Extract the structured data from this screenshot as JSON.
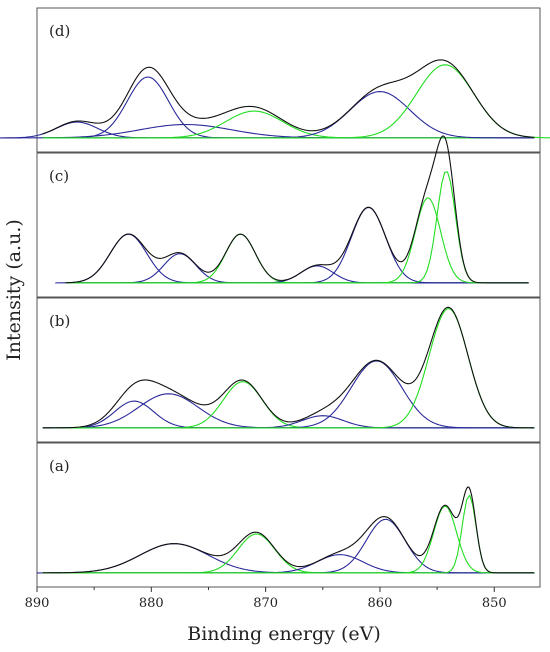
{
  "chart_data": {
    "type": "line",
    "xlabel": "Binding energy (eV)",
    "ylabel": "Intensity (a.u.)",
    "xlim": [
      890,
      846
    ],
    "x_reversed": true,
    "xticks": [
      890,
      880,
      870,
      860,
      850
    ],
    "colors": {
      "envelope": "#111111",
      "blue": "#2a2a9a",
      "green": "#22dd22",
      "baseline": "#2a2a9a"
    },
    "panels": [
      {
        "label": "(d)",
        "x_range": [
          889.5,
          846.5
        ],
        "baseline": 0.0,
        "ylim": [
          -0.05,
          1.0
        ],
        "peaks": [
          {
            "center": 886.5,
            "height": 0.13,
            "width": 1.8,
            "color": "blue"
          },
          {
            "center": 880.3,
            "height": 0.5,
            "width": 1.8,
            "color": "blue"
          },
          {
            "center": 877.0,
            "height": 0.11,
            "width": 4.0,
            "color": "blue"
          },
          {
            "center": 871.0,
            "height": 0.22,
            "width": 2.5,
            "color": "green"
          },
          {
            "center": 860.0,
            "height": 0.38,
            "width": 2.6,
            "color": "blue"
          },
          {
            "center": 854.3,
            "height": 0.6,
            "width": 2.5,
            "color": "green"
          }
        ]
      },
      {
        "label": "(c)",
        "x_range": [
          887.5,
          847.0
        ],
        "baseline": 0.0,
        "ylim": [
          -0.05,
          1.0
        ],
        "peaks": [
          {
            "center": 882.0,
            "height": 0.4,
            "width": 1.6,
            "color": "blue"
          },
          {
            "center": 877.5,
            "height": 0.24,
            "width": 1.4,
            "color": "blue"
          },
          {
            "center": 872.2,
            "height": 0.4,
            "width": 1.3,
            "color": "green"
          },
          {
            "center": 865.5,
            "height": 0.14,
            "width": 1.4,
            "color": "blue"
          },
          {
            "center": 861.0,
            "height": 0.62,
            "width": 1.5,
            "color": "blue"
          },
          {
            "center": 855.8,
            "height": 0.7,
            "width": 1.1,
            "color": "green"
          },
          {
            "center": 854.2,
            "height": 0.92,
            "width": 0.8,
            "color": "green"
          }
        ]
      },
      {
        "label": "(b)",
        "x_range": [
          889.5,
          846.5
        ],
        "baseline": 0.0,
        "ylim": [
          -0.05,
          1.0
        ],
        "peaks": [
          {
            "center": 881.5,
            "height": 0.22,
            "width": 1.7,
            "color": "blue"
          },
          {
            "center": 878.5,
            "height": 0.28,
            "width": 2.6,
            "color": "blue"
          },
          {
            "center": 872.0,
            "height": 0.38,
            "width": 1.7,
            "color": "green"
          },
          {
            "center": 865.0,
            "height": 0.1,
            "width": 1.8,
            "color": "blue"
          },
          {
            "center": 860.3,
            "height": 0.55,
            "width": 2.2,
            "color": "blue"
          },
          {
            "center": 854.0,
            "height": 0.98,
            "width": 1.7,
            "color": "green"
          }
        ]
      },
      {
        "label": "(a)",
        "x_range": [
          889.5,
          846.5
        ],
        "baseline": 0.0,
        "ylim": [
          -0.05,
          1.0
        ],
        "peaks": [
          {
            "center": 878.0,
            "height": 0.24,
            "width": 3.0,
            "color": "blue"
          },
          {
            "center": 870.8,
            "height": 0.32,
            "width": 1.6,
            "color": "green"
          },
          {
            "center": 863.5,
            "height": 0.15,
            "width": 2.0,
            "color": "blue"
          },
          {
            "center": 859.5,
            "height": 0.44,
            "width": 1.7,
            "color": "blue"
          },
          {
            "center": 854.3,
            "height": 0.55,
            "width": 1.0,
            "color": "green"
          },
          {
            "center": 852.2,
            "height": 0.64,
            "width": 0.6,
            "color": "green"
          }
        ]
      }
    ]
  }
}
